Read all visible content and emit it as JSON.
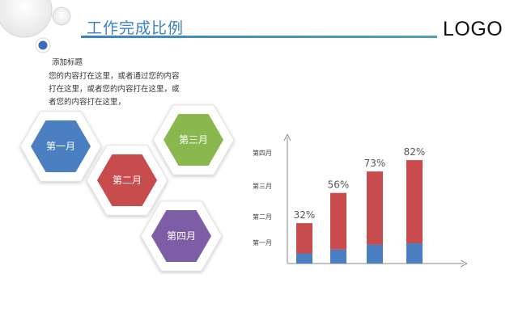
{
  "header": {
    "title": "工作完成比例",
    "logo": "LOGO"
  },
  "text_block": {
    "subtitle": "添加标题",
    "body": "您的内容打在这里，或者通过您的内容打在这里，或者您的内容打在这里，或者您的内容打在这里，"
  },
  "hexagons": [
    {
      "label": "第一月",
      "color": "#4a7fc1"
    },
    {
      "label": "第二月",
      "color": "#c84b4e"
    },
    {
      "label": "第三月",
      "color": "#8ab84f"
    },
    {
      "label": "第四月",
      "color": "#7d5ea6"
    }
  ],
  "colors": {
    "accent": "#3a82c4",
    "bar_bottom": "#4a7fc1",
    "bar_top": "#c84b4e"
  },
  "chart_data": {
    "type": "bar",
    "stacked": true,
    "y_tick_labels": [
      "第一月",
      "第二月",
      "第三月",
      "第四月"
    ],
    "categories": [
      "",
      "",
      "",
      ""
    ],
    "labels": [
      "32%",
      "56%",
      "73%",
      "82%"
    ],
    "values": [
      32,
      56,
      73,
      82
    ],
    "series": [
      {
        "color": "#4a7fc1",
        "values": [
          8,
          11,
          15,
          16
        ]
      },
      {
        "color": "#c84b4e",
        "values": [
          24,
          45,
          58,
          66
        ]
      }
    ],
    "ylim": [
      0,
      100
    ],
    "grid": false
  }
}
